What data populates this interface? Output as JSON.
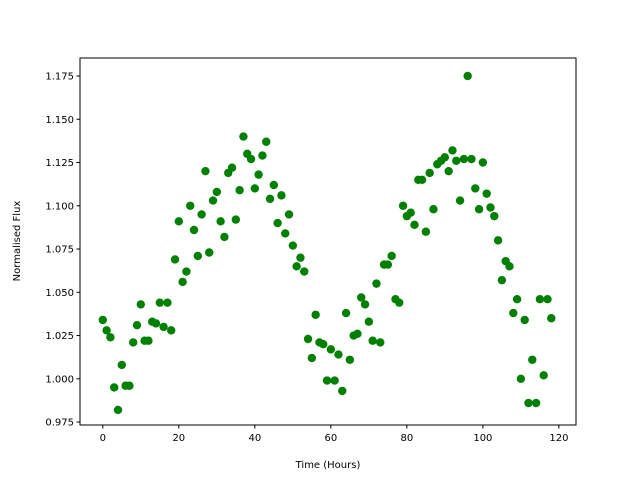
{
  "chart_data": {
    "type": "scatter",
    "xlabel": "Time (Hours)",
    "ylabel": "Normalised Flux",
    "color": "#008000",
    "x": [
      0,
      1,
      2,
      3,
      4,
      5,
      6,
      7,
      8,
      9,
      10,
      11,
      12,
      13,
      14,
      15,
      16,
      17,
      18,
      19,
      20,
      21,
      22,
      23,
      24,
      25,
      26,
      27,
      28,
      29,
      30,
      31,
      32,
      33,
      34,
      35,
      36,
      37,
      38,
      39,
      40,
      41,
      42,
      43,
      44,
      45,
      46,
      47,
      48,
      49,
      50,
      51,
      52,
      53,
      54,
      55,
      56,
      57,
      58,
      59,
      60,
      61,
      62,
      63,
      64,
      65,
      66,
      67,
      68,
      69,
      70,
      71,
      72,
      73,
      74,
      75,
      76,
      77,
      78,
      79,
      80,
      81,
      82,
      83,
      84,
      85,
      86,
      87,
      88,
      89,
      90,
      91,
      92,
      93,
      94,
      95,
      96,
      97,
      98,
      99,
      100,
      101,
      102,
      103,
      104,
      105,
      106,
      107,
      108,
      109,
      110,
      111,
      112,
      113,
      114,
      115,
      116,
      117,
      118
    ],
    "values": [
      1.034,
      1.028,
      1.024,
      0.995,
      0.982,
      1.008,
      0.996,
      0.996,
      1.021,
      1.031,
      1.043,
      1.022,
      1.022,
      1.033,
      1.032,
      1.044,
      1.03,
      1.044,
      1.028,
      1.069,
      1.091,
      1.056,
      1.062,
      1.1,
      1.086,
      1.071,
      1.095,
      1.12,
      1.073,
      1.103,
      1.108,
      1.091,
      1.082,
      1.119,
      1.122,
      1.092,
      1.109,
      1.14,
      1.13,
      1.127,
      1.11,
      1.118,
      1.129,
      1.137,
      1.104,
      1.112,
      1.09,
      1.106,
      1.084,
      1.095,
      1.077,
      1.065,
      1.07,
      1.062,
      1.023,
      1.012,
      1.037,
      1.021,
      1.02,
      0.999,
      1.017,
      0.999,
      1.014,
      0.993,
      1.038,
      1.011,
      1.025,
      1.026,
      1.047,
      1.043,
      1.033,
      1.022,
      1.055,
      1.021,
      1.066,
      1.066,
      1.071,
      1.046,
      1.044,
      1.1,
      1.094,
      1.096,
      1.089,
      1.115,
      1.115,
      1.085,
      1.119,
      1.098,
      1.124,
      1.126,
      1.128,
      1.12,
      1.132,
      1.126,
      1.103,
      1.127,
      1.175,
      1.127,
      1.11,
      1.098,
      1.125,
      1.107,
      1.099,
      1.094,
      1.08,
      1.057,
      1.068,
      1.065,
      1.038,
      1.046,
      1.0,
      1.034,
      0.986,
      1.011,
      0.986,
      1.046,
      1.002,
      1.046,
      1.035
    ],
    "xlim": [
      -6,
      124.5
    ],
    "xticks": [
      0,
      20,
      40,
      60,
      80,
      100,
      120
    ],
    "ylim": [
      0.9733,
      1.1854
    ],
    "yticks": [
      0.975,
      {
        "value": 1.0,
        "label": "1.000"
      },
      1.025,
      {
        "value": 1.05,
        "label": "1.050"
      },
      1.075,
      {
        "value": 1.1,
        "label": "1.100"
      },
      1.125,
      {
        "value": 1.15,
        "label": "1.150"
      },
      1.175
    ]
  }
}
